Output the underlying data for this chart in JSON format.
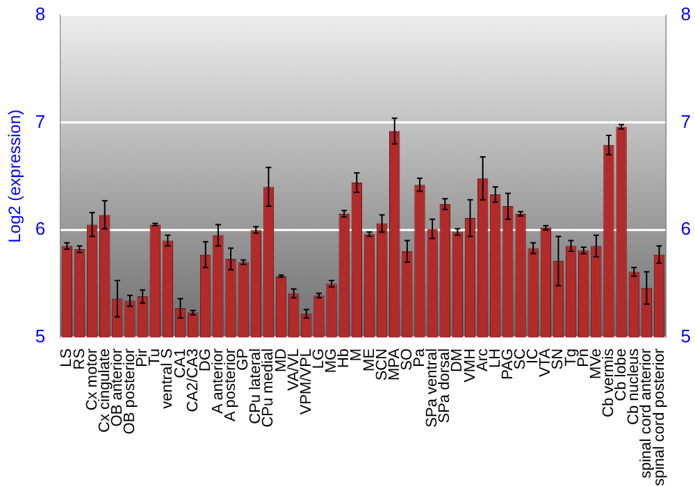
{
  "chart_data": {
    "type": "bar",
    "ylabel": "Log2 (expression)",
    "categories": [
      "LS",
      "RS",
      "Cx motor",
      "Cx cingulate",
      "OB anterior",
      "OB posterior",
      "Pir",
      "Tu",
      "ventral S",
      "CA1",
      "CA2/CA3",
      "DG",
      "A anterior",
      "A posterior",
      "GP",
      "CPu lateral",
      "CPu medial",
      "MD",
      "VA/VL",
      "VPM/VPL",
      "LG",
      "MG",
      "Hb",
      "M",
      "ME",
      "SCN",
      "MPA",
      "SO",
      "Pa",
      "SPa ventral",
      "SPa dorsal",
      "DM",
      "VMH",
      "Arc",
      "LH",
      "PAG",
      "SC",
      "IC",
      "VTA",
      "SN",
      "Tg",
      "Pn",
      "MVe",
      "Cb vermis",
      "Cb lobe",
      "Cb nucleus",
      "spinal cord anterior",
      "spinal cord posterior"
    ],
    "series": [
      {
        "color": "#b22a2a",
        "values": [
          5.85,
          5.82,
          6.05,
          6.14,
          5.36,
          5.34,
          5.38,
          6.05,
          5.9,
          5.27,
          5.23,
          5.77,
          5.95,
          5.73,
          5.7,
          6.0,
          6.4,
          5.57,
          5.41,
          5.22,
          5.39,
          5.5,
          6.15,
          6.44,
          5.96,
          6.06,
          6.92,
          5.8,
          6.42,
          6.01,
          6.24,
          5.98,
          6.11,
          6.48,
          6.33,
          6.22,
          6.15,
          5.83,
          6.02,
          5.71,
          5.85,
          5.81,
          5.85,
          6.79,
          6.96,
          5.61,
          5.46,
          5.77
        ],
        "errors": [
          0.03,
          0.03,
          0.11,
          0.13,
          0.17,
          0.05,
          0.06,
          0.01,
          0.05,
          0.09,
          0.02,
          0.12,
          0.1,
          0.1,
          0.02,
          0.03,
          0.18,
          0.01,
          0.04,
          0.04,
          0.02,
          0.03,
          0.03,
          0.09,
          0.02,
          0.08,
          0.12,
          0.1,
          0.06,
          0.09,
          0.05,
          0.03,
          0.17,
          0.2,
          0.07,
          0.12,
          0.02,
          0.05,
          0.02,
          0.23,
          0.05,
          0.03,
          0.1,
          0.09,
          0.02,
          0.04,
          0.15,
          0.08
        ]
      }
    ],
    "ylim": [
      5,
      8
    ],
    "yticks": [
      5,
      6,
      7,
      8
    ],
    "y2lim": [
      5,
      8
    ],
    "y2ticks": [
      5,
      6,
      7,
      8
    ],
    "grid": "y",
    "legend": false
  }
}
